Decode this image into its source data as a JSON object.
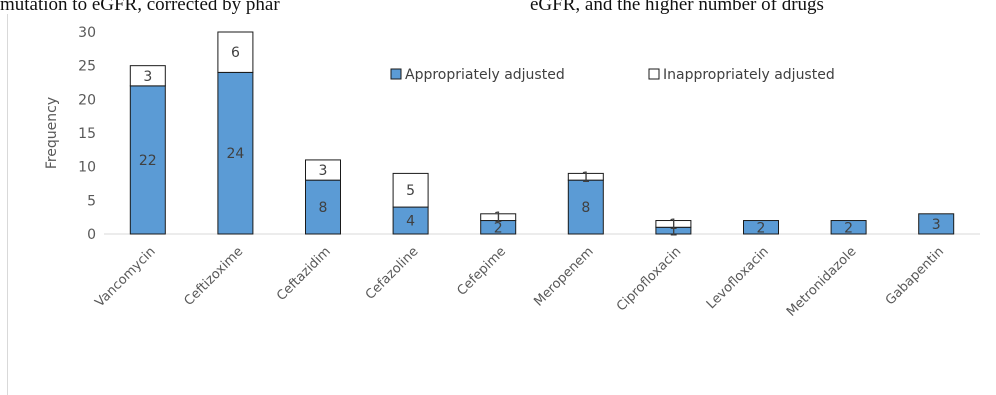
{
  "page_text": {
    "left_fragment": "mutation to eGFR, corrected by phar",
    "right_fragment": "eGFR, and the higher number of drugs"
  },
  "chart_data": {
    "type": "bar",
    "stacked": true,
    "title": "",
    "xlabel": "",
    "ylabel": "Frequency",
    "ylim": [
      0,
      30
    ],
    "yticks": [
      0,
      5,
      10,
      15,
      20,
      25,
      30
    ],
    "grid": false,
    "legend_position": "top-center",
    "categories": [
      "Vancomycin",
      "Ceftizoxime",
      "Ceftazidim",
      "Cefazoline",
      "Cefepime",
      "Meropenem",
      "Ciprofloxacin",
      "Levofloxacin",
      "Metronidazole",
      "Gabapentin"
    ],
    "series": [
      {
        "name": "Appropriately adjusted",
        "color": "#5b9bd5",
        "values": [
          22,
          24,
          8,
          4,
          2,
          8,
          1,
          2,
          2,
          3
        ]
      },
      {
        "name": "Inappropriately adjusted",
        "color": "#ffffff",
        "values": [
          3,
          6,
          3,
          5,
          1,
          1,
          1,
          0,
          0,
          0
        ]
      }
    ]
  }
}
